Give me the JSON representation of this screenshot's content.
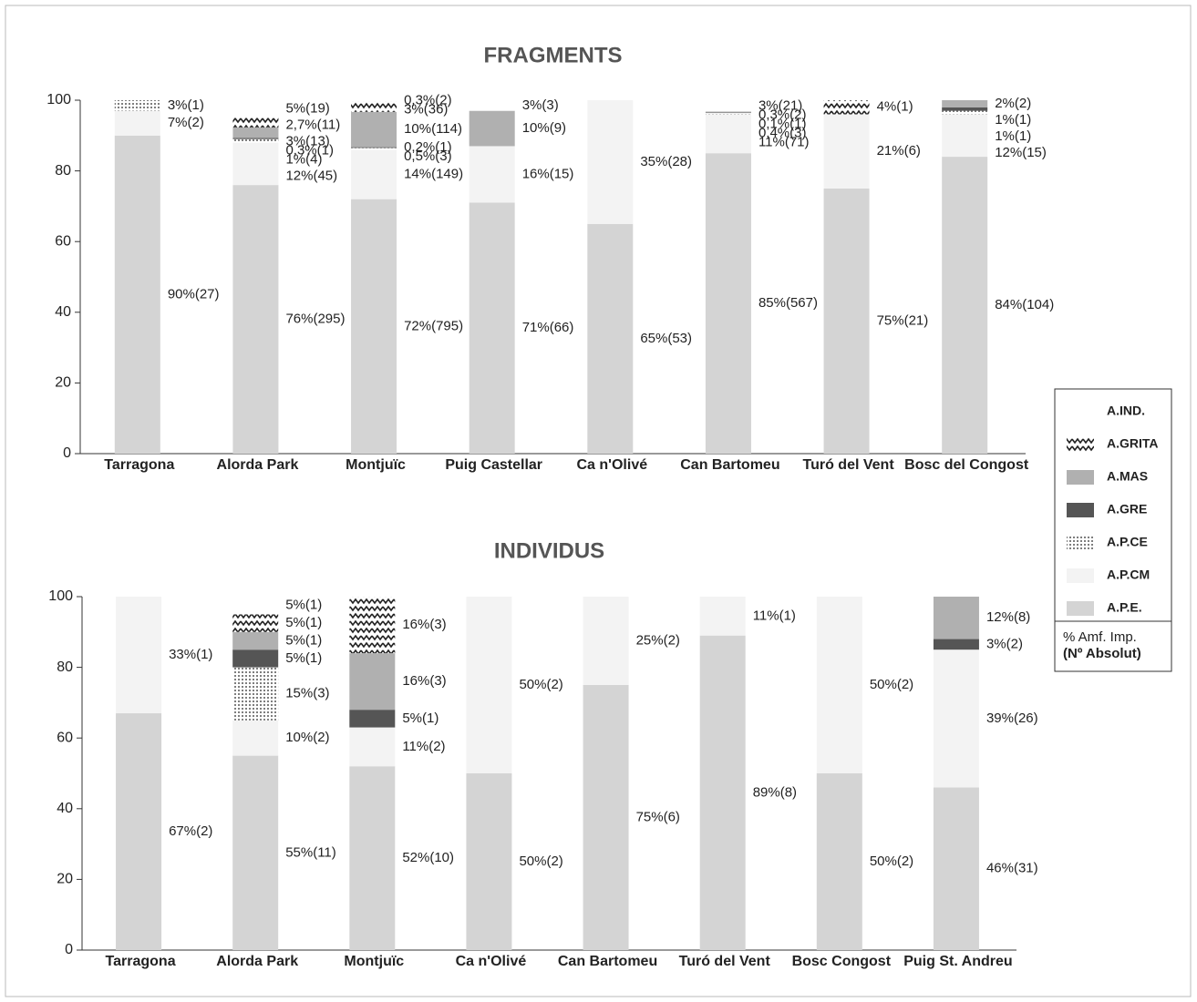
{
  "legend_note": [
    "% Amf. Imp.",
    "(Nº Absolut)"
  ],
  "chart_data": [
    {
      "type": "stacked_bar",
      "title": "FRAGMENTS",
      "categories": [
        "Tarragona",
        "Alorda Park",
        "Montjuïc",
        "Puig Castellar",
        "Ca n'Olivé",
        "Can Bartomeu",
        "Turó del Vent",
        "Bosc del Congost"
      ],
      "ylim": [
        0,
        100
      ],
      "yticks": [
        0,
        20,
        40,
        60,
        80,
        100
      ],
      "series": [
        {
          "name": "A.P.E.",
          "color": "#d4d4d4",
          "values": [
            90,
            76,
            72,
            71,
            65,
            85,
            75,
            84
          ],
          "value_labels": [
            "90%(27)",
            "76%(295)",
            "72%(795)",
            "71%(66)",
            "65%(53)",
            "85%(567)",
            "75%(21)",
            "84%(104)"
          ]
        },
        {
          "name": "A.P.CM",
          "color": "#f3f3f3",
          "values": [
            7,
            12,
            14,
            16,
            35,
            11,
            21,
            12
          ],
          "value_labels": [
            "7%(2)",
            "12%(45)",
            "14%(149)",
            "16%(15)",
            "35%(28)",
            "11%(71)",
            "21%(6)",
            "12%(15)"
          ]
        },
        {
          "name": "A.P.CE",
          "color": "#222222",
          "pattern": "dots",
          "values": [
            3,
            1,
            0.5,
            null,
            null,
            0.4,
            null,
            1
          ],
          "value_labels": [
            "3%(1)",
            "1%(4)",
            "0,5%(3)",
            null,
            null,
            "0,4%(3)",
            null,
            "1%(1)"
          ]
        },
        {
          "name": "A.GRE",
          "color": "#555555",
          "values": [
            null,
            0.3,
            0.2,
            null,
            null,
            0.1,
            null,
            1
          ],
          "value_labels": [
            null,
            "0,3%(1)",
            "0,2%(1)",
            null,
            null,
            "0,1%(1)",
            null,
            "1%(1)"
          ]
        },
        {
          "name": "A.MAS",
          "color": "#b0b0b0",
          "values": [
            null,
            3,
            10,
            10,
            null,
            0.3,
            null,
            2
          ],
          "value_labels": [
            null,
            "3%(13)",
            "10%(114)",
            "10%(9)",
            null,
            "0,3%(2)",
            null,
            "2%(2)"
          ]
        },
        {
          "name": "A.GRITA",
          "color": "#333333",
          "pattern": "zigzag",
          "values": [
            null,
            2.7,
            3,
            null,
            null,
            null,
            4,
            null
          ],
          "value_labels": [
            null,
            "2,7%(11)",
            "3%(36)",
            null,
            null,
            null,
            "4%(1)",
            null
          ]
        },
        {
          "name": "A.IND.",
          "color": "#ffffff",
          "values": [
            null,
            5,
            0.3,
            3,
            null,
            3,
            null,
            null
          ],
          "value_labels": [
            null,
            "5%(19)",
            "0,3%(2)",
            "3%(3)",
            null,
            "3%(21)",
            null,
            null
          ]
        }
      ]
    },
    {
      "type": "stacked_bar",
      "title": "INDIVIDUS",
      "categories": [
        "Tarragona",
        "Alorda Park",
        "Montjuïc",
        "Ca n'Olivé",
        "Can Bartomeu",
        "Turó del Vent",
        "Bosc Congost",
        "Puig St. Andreu"
      ],
      "ylim": [
        0,
        100
      ],
      "yticks": [
        0,
        20,
        40,
        60,
        80,
        100
      ],
      "series": [
        {
          "name": "A.P.E.",
          "color": "#d4d4d4",
          "values": [
            67,
            55,
            52,
            50,
            75,
            89,
            50,
            46
          ],
          "value_labels": [
            "67%(2)",
            "55%(11)",
            "52%(10)",
            "50%(2)",
            "75%(6)",
            "89%(8)",
            "50%(2)",
            "46%(31)"
          ]
        },
        {
          "name": "A.P.CM",
          "color": "#f3f3f3",
          "values": [
            33,
            10,
            11,
            50,
            25,
            11,
            50,
            39
          ],
          "value_labels": [
            "33%(1)",
            "10%(2)",
            "11%(2)",
            "50%(2)",
            "25%(2)",
            "11%(1)",
            "50%(2)",
            "39%(26)"
          ]
        },
        {
          "name": "A.P.CE",
          "color": "#222222",
          "pattern": "dots",
          "values": [
            null,
            15,
            null,
            null,
            null,
            null,
            null,
            null
          ],
          "value_labels": [
            null,
            "15%(3)",
            null,
            null,
            null,
            null,
            null,
            null
          ]
        },
        {
          "name": "A.GRE",
          "color": "#555555",
          "values": [
            null,
            5,
            5,
            null,
            null,
            null,
            null,
            3
          ],
          "value_labels": [
            null,
            "5%(1)",
            "5%(1)",
            null,
            null,
            null,
            null,
            "3%(2)"
          ]
        },
        {
          "name": "A.MAS",
          "color": "#b0b0b0",
          "values": [
            null,
            5,
            16,
            null,
            null,
            null,
            null,
            12
          ],
          "value_labels": [
            null,
            "5%(1)",
            "16%(3)",
            null,
            null,
            null,
            null,
            "12%(8)"
          ]
        },
        {
          "name": "A.GRITA",
          "color": "#333333",
          "pattern": "zigzag",
          "values": [
            null,
            5,
            16,
            null,
            null,
            null,
            null,
            null
          ],
          "value_labels": [
            null,
            "5%(1)",
            "16%(3)",
            null,
            null,
            null,
            null,
            null
          ]
        },
        {
          "name": "A.IND.",
          "color": "#ffffff",
          "values": [
            null,
            5,
            null,
            null,
            null,
            null,
            null,
            null
          ],
          "value_labels": [
            null,
            "5%(1)",
            null,
            null,
            null,
            null,
            null,
            null
          ]
        }
      ]
    }
  ]
}
